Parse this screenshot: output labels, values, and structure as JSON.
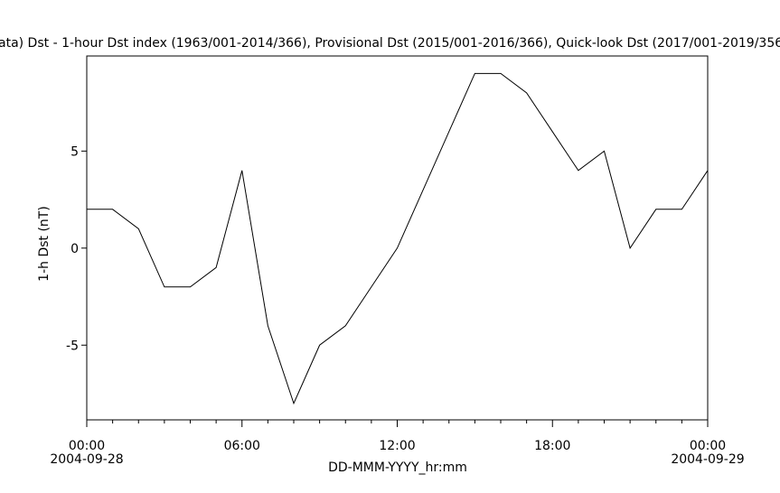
{
  "chart_data": {
    "type": "line",
    "title": "ata)  Dst - 1-hour Dst index (1963/001-2014/366), Provisional Dst (2015/001-2016/366), Quick-look Dst (2017/001-2019/356",
    "x_label": "DD-MMM-YYYY_hr:mm",
    "y_label": "1-h Dst (nT)",
    "x": [
      0,
      1,
      2,
      3,
      4,
      5,
      6,
      7,
      8,
      9,
      10,
      11,
      12,
      13,
      14,
      15,
      16,
      17,
      18,
      19,
      20,
      21,
      22,
      23,
      24
    ],
    "series": [
      {
        "color": "#000000",
        "values": [
          2,
          2,
          1,
          -2,
          -2,
          -1,
          4,
          -4,
          -8,
          -5,
          -4,
          -2,
          0,
          3,
          6,
          9,
          9,
          8,
          6,
          4,
          5,
          0,
          2,
          2,
          4
        ]
      }
    ],
    "xlim": [
      0,
      24
    ],
    "xticks": [
      {
        "value": 0,
        "label": "00:00",
        "date": "2004-09-28"
      },
      {
        "value": 6,
        "label": "06:00"
      },
      {
        "value": 12,
        "label": "12:00"
      },
      {
        "value": 18,
        "label": "18:00"
      },
      {
        "value": 24,
        "label": "00:00",
        "date": "2004-09-29"
      }
    ],
    "xminorticks": [
      1,
      2,
      3,
      4,
      5,
      7,
      8,
      9,
      10,
      11,
      13,
      14,
      15,
      16,
      17,
      19,
      20,
      21,
      22,
      23
    ],
    "ylim": [
      -8.85,
      9.9
    ],
    "yticks": [
      -5,
      0,
      5
    ],
    "grid": false
  }
}
